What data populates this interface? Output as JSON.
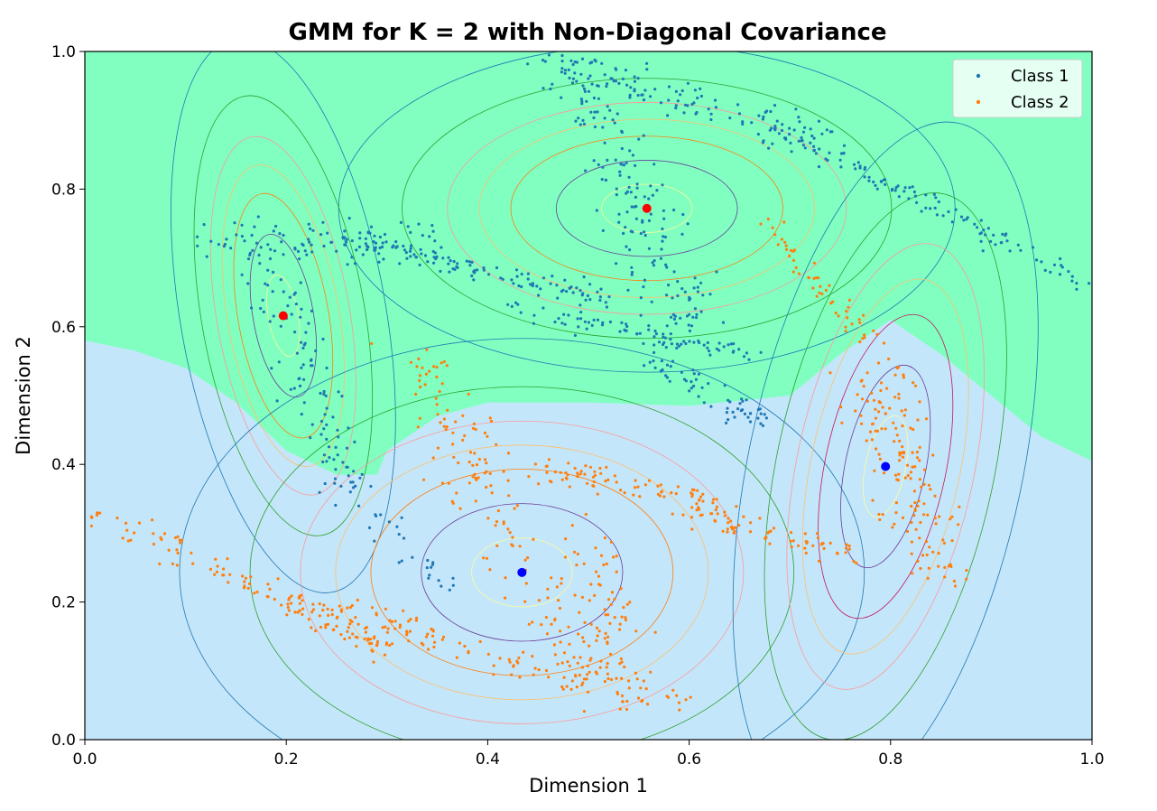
{
  "chart_data": {
    "type": "scatter",
    "title": "GMM for K = 2 with Non-Diagonal Covariance",
    "xlabel": "Dimension 1",
    "ylabel": "Dimension 2",
    "xlim": [
      0.0,
      1.0
    ],
    "ylim": [
      0.0,
      1.0
    ],
    "xticks": [
      "0.0",
      "0.2",
      "0.4",
      "0.6",
      "0.8",
      "1.0"
    ],
    "yticks": [
      "0.0",
      "0.2",
      "0.4",
      "0.6",
      "0.8",
      "1.0"
    ],
    "grid": false,
    "legend_position": "top-right",
    "region_colors": {
      "class1": "#80ffc0",
      "class2": "#c4e6fa"
    },
    "decision_boundary": [
      [
        0.0,
        0.58
      ],
      [
        0.05,
        0.565
      ],
      [
        0.1,
        0.54
      ],
      [
        0.15,
        0.49
      ],
      [
        0.2,
        0.42
      ],
      [
        0.25,
        0.385
      ],
      [
        0.29,
        0.385
      ],
      [
        0.3,
        0.42
      ],
      [
        0.35,
        0.47
      ],
      [
        0.4,
        0.49
      ],
      [
        0.5,
        0.49
      ],
      [
        0.6,
        0.485
      ],
      [
        0.7,
        0.5
      ],
      [
        0.75,
        0.56
      ],
      [
        0.8,
        0.61
      ],
      [
        0.85,
        0.56
      ],
      [
        0.9,
        0.5
      ],
      [
        0.95,
        0.44
      ],
      [
        1.0,
        0.405
      ]
    ],
    "series": [
      {
        "name": "Class 1",
        "color": "#1f77b4",
        "segments": [
          {
            "from": [
              0.1,
              0.73
            ],
            "to": [
              0.35,
              0.72
            ],
            "spread": 0.03,
            "n": 90
          },
          {
            "from": [
              0.18,
              0.7
            ],
            "to": [
              0.27,
              0.35
            ],
            "spread": 0.025,
            "n": 110
          },
          {
            "from": [
              0.25,
              0.73
            ],
            "to": [
              0.52,
              0.64
            ],
            "spread": 0.012,
            "n": 120
          },
          {
            "from": [
              0.42,
              0.63
            ],
            "to": [
              0.66,
              0.56
            ],
            "spread": 0.012,
            "n": 80
          },
          {
            "from": [
              0.48,
              0.99
            ],
            "to": [
              0.6,
              0.6
            ],
            "spread": 0.03,
            "n": 180
          },
          {
            "from": [
              0.55,
              0.56
            ],
            "to": [
              0.67,
              0.46
            ],
            "spread": 0.015,
            "n": 60
          },
          {
            "from": [
              0.46,
              0.98
            ],
            "to": [
              0.73,
              0.88
            ],
            "spread": 0.025,
            "n": 110
          },
          {
            "from": [
              0.68,
              0.89
            ],
            "to": [
              1.0,
              0.66
            ],
            "spread": 0.012,
            "n": 120
          },
          {
            "from": [
              0.28,
              0.34
            ],
            "to": [
              0.36,
              0.22
            ],
            "spread": 0.015,
            "n": 25
          }
        ],
        "centroid": [
          0.558,
          0.772
        ],
        "centroid2": [
          0.197,
          0.616
        ]
      },
      {
        "name": "Class 2",
        "color": "#ff7f0e",
        "segments": [
          {
            "from": [
              0.0,
              0.34
            ],
            "to": [
              0.3,
              0.13
            ],
            "spread": 0.015,
            "n": 110
          },
          {
            "from": [
              0.2,
              0.2
            ],
            "to": [
              0.6,
              0.05
            ],
            "spread": 0.02,
            "n": 140
          },
          {
            "from": [
              0.33,
              0.55
            ],
            "to": [
              0.5,
              0.08
            ],
            "spread": 0.03,
            "n": 160
          },
          {
            "from": [
              0.44,
              0.4
            ],
            "to": [
              0.64,
              0.34
            ],
            "spread": 0.015,
            "n": 80
          },
          {
            "from": [
              0.6,
              0.33
            ],
            "to": [
              0.77,
              0.27
            ],
            "spread": 0.015,
            "n": 70
          },
          {
            "from": [
              0.67,
              0.76
            ],
            "to": [
              0.82,
              0.52
            ],
            "spread": 0.012,
            "n": 60
          },
          {
            "from": [
              0.78,
              0.52
            ],
            "to": [
              0.85,
              0.25
            ],
            "spread": 0.03,
            "n": 150
          },
          {
            "from": [
              0.5,
              0.3
            ],
            "to": [
              0.54,
              0.05
            ],
            "spread": 0.02,
            "n": 70
          }
        ],
        "centroid": [
          0.434,
          0.243
        ],
        "centroid2": [
          0.795,
          0.397
        ]
      }
    ],
    "components": [
      {
        "center": [
          0.558,
          0.772
        ],
        "rx": 0.09,
        "ry": 0.07,
        "marker": "#ff0000"
      },
      {
        "center": [
          0.197,
          0.616
        ],
        "rx": 0.03,
        "ry": 0.12,
        "rot": -10,
        "marker": "#ff0000"
      },
      {
        "center": [
          0.434,
          0.243
        ],
        "rx": 0.1,
        "ry": 0.1,
        "marker": "#0000ff"
      },
      {
        "center": [
          0.795,
          0.397
        ],
        "rx": 0.04,
        "ry": 0.15,
        "rot": 12,
        "marker": "#0000ff"
      }
    ],
    "contour_colors": [
      "#fefd9c",
      "#6a3d9a",
      "#ff7f0e",
      "#fdbf6f",
      "#fb9a99",
      "#2ca02c",
      "#1f77b4"
    ],
    "extra_contour_color": "#c2185b"
  }
}
